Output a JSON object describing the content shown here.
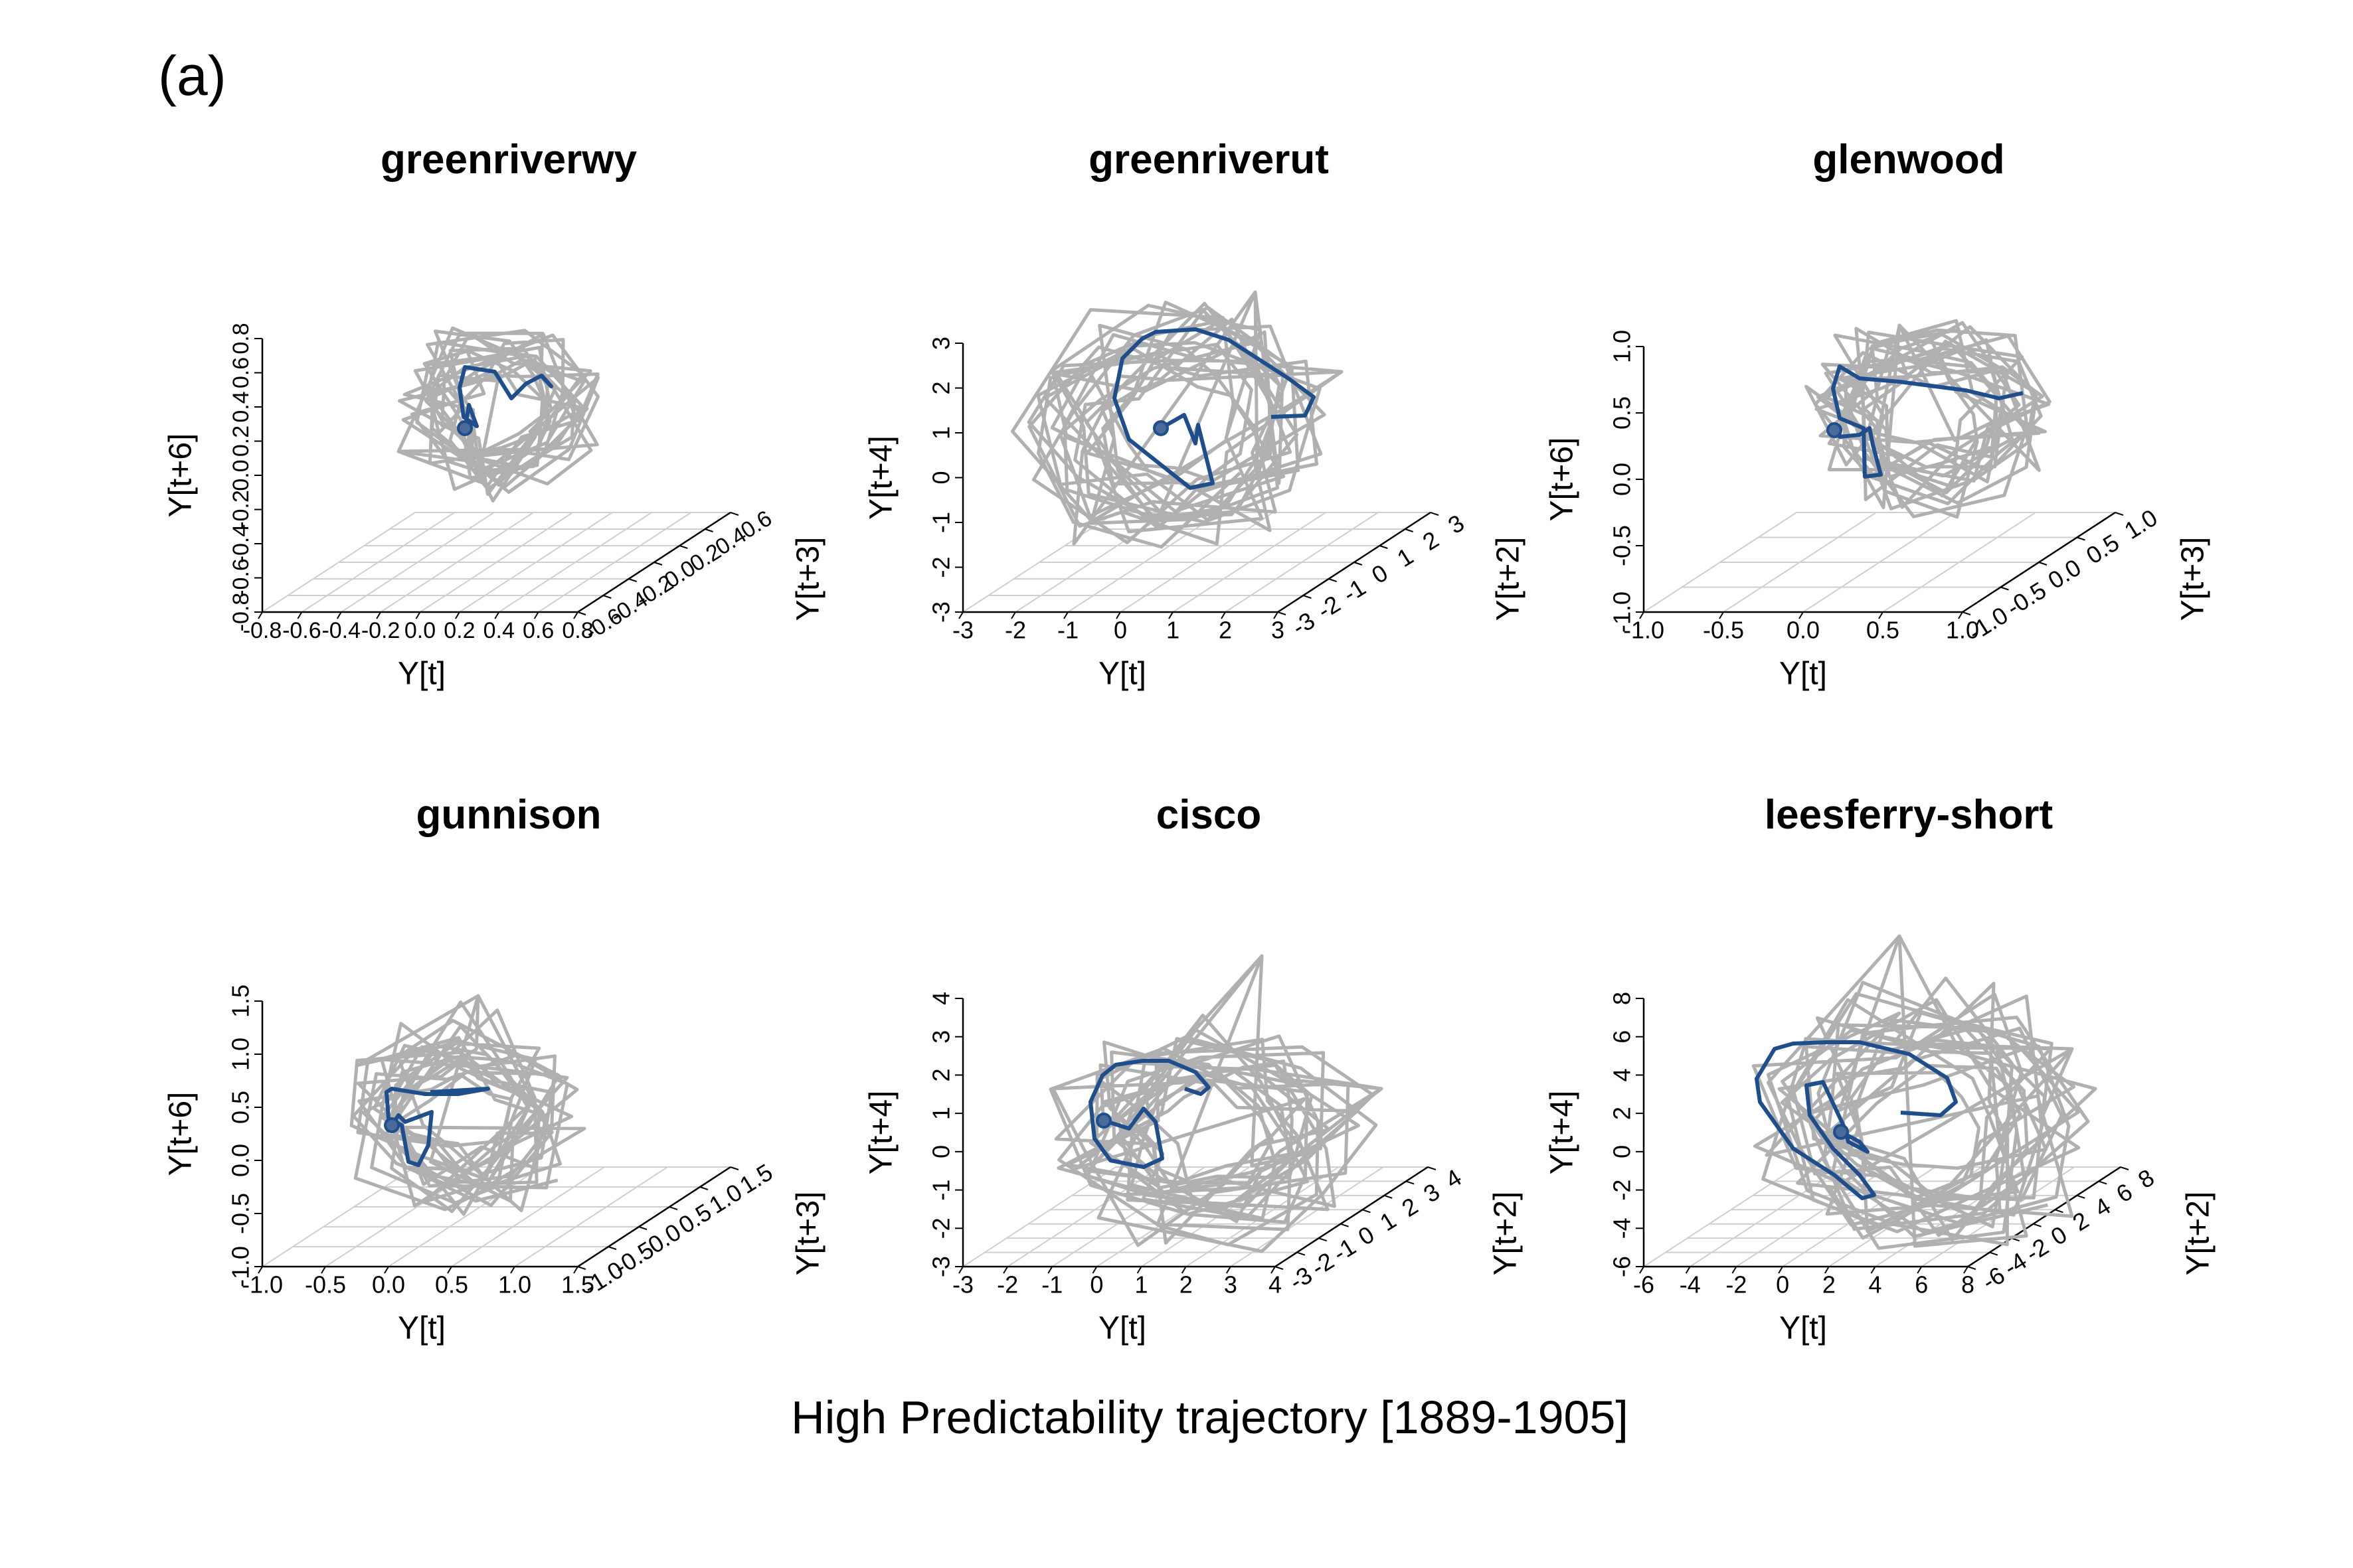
{
  "figure": {
    "panel_label": "(a)",
    "caption": "High Predictability trajectory [1889-1905]"
  },
  "chart_data": [
    {
      "type": "line",
      "title": "greenriverwy",
      "xlabel": "Y[t]",
      "ylabel": "Y[t+3]",
      "zlabel": "Y[t+6]",
      "x_ticks": [
        "-0.8",
        "-0.6",
        "-0.4",
        "-0.2",
        "0.0",
        "0.2",
        "0.4",
        "0.6",
        "0.8"
      ],
      "y_ticks": [
        "-0.6",
        "-0.4",
        "-0.2",
        "0.0",
        "0.2",
        "0.4",
        "0.6"
      ],
      "z_ticks": [
        "-0.8",
        "-0.6",
        "-0.4",
        "-0.2",
        "0.0",
        "0.2",
        "0.4",
        "0.6",
        "0.8"
      ],
      "xlim": [
        -0.8,
        0.8
      ],
      "ylim": [
        -0.6,
        0.6
      ],
      "zlim": [
        -0.8,
        0.8
      ],
      "background_color": "#b0b0b0",
      "highlight_color": "#1f4e8c"
    },
    {
      "type": "line",
      "title": "greenriverut",
      "xlabel": "Y[t]",
      "ylabel": "Y[t+2]",
      "zlabel": "Y[t+4]",
      "x_ticks": [
        "-3",
        "-2",
        "-1",
        "0",
        "1",
        "2",
        "3"
      ],
      "y_ticks": [
        "-3",
        "-2",
        "-1",
        "0",
        "1",
        "2",
        "3"
      ],
      "z_ticks": [
        "-3",
        "-2",
        "-1",
        "0",
        "1",
        "2",
        "3"
      ],
      "xlim": [
        -3,
        3
      ],
      "ylim": [
        -3,
        3
      ],
      "zlim": [
        -3,
        3
      ],
      "background_color": "#b0b0b0",
      "highlight_color": "#1f4e8c"
    },
    {
      "type": "line",
      "title": "glenwood",
      "xlabel": "Y[t]",
      "ylabel": "Y[t+3]",
      "zlabel": "Y[t+6]",
      "x_ticks": [
        "-1.0",
        "-0.5",
        "0.0",
        "0.5",
        "1.0"
      ],
      "y_ticks": [
        "-1.0",
        "-0.5",
        "0.0",
        "0.5",
        "1.0"
      ],
      "z_ticks": [
        "-1.0",
        "-0.5",
        "0.0",
        "0.5",
        "1.0"
      ],
      "xlim": [
        -1,
        1
      ],
      "ylim": [
        -1,
        1
      ],
      "zlim": [
        -1,
        1
      ],
      "background_color": "#b0b0b0",
      "highlight_color": "#1f4e8c"
    },
    {
      "type": "line",
      "title": "gunnison",
      "xlabel": "Y[t]",
      "ylabel": "Y[t+3]",
      "zlabel": "Y[t+6]",
      "x_ticks": [
        "-1.0",
        "-0.5",
        "0.0",
        "0.5",
        "1.0",
        "1.5"
      ],
      "y_ticks": [
        "-1.0",
        "-0.5",
        "0.0",
        "0.5",
        "1.0",
        "1.5"
      ],
      "z_ticks": [
        "-1.0",
        "-0.5",
        "0.0",
        "0.5",
        "1.0",
        "1.5"
      ],
      "xlim": [
        -1,
        1.5
      ],
      "ylim": [
        -1,
        1.5
      ],
      "zlim": [
        -1,
        1.5
      ],
      "background_color": "#b0b0b0",
      "highlight_color": "#1f4e8c"
    },
    {
      "type": "line",
      "title": "cisco",
      "xlabel": "Y[t]",
      "ylabel": "Y[t+2]",
      "zlabel": "Y[t+4]",
      "x_ticks": [
        "-3",
        "-2",
        "-1",
        "0",
        "1",
        "2",
        "3",
        "4"
      ],
      "y_ticks": [
        "-3",
        "-2",
        "-1",
        "0",
        "1",
        "2",
        "3",
        "4"
      ],
      "z_ticks": [
        "-3",
        "-2",
        "-1",
        "0",
        "1",
        "2",
        "3",
        "4"
      ],
      "xlim": [
        -3,
        4
      ],
      "ylim": [
        -3,
        4
      ],
      "zlim": [
        -3,
        4
      ],
      "background_color": "#b0b0b0",
      "highlight_color": "#1f4e8c"
    },
    {
      "type": "line",
      "title": "leesferry-short",
      "xlabel": "Y[t]",
      "ylabel": "Y[t+2]",
      "zlabel": "Y[t+4]",
      "x_ticks": [
        "-6",
        "-4",
        "-2",
        "0",
        "2",
        "4",
        "6",
        "8"
      ],
      "y_ticks": [
        "-6",
        "-4",
        "-2",
        "0",
        "2",
        "4",
        "6",
        "8"
      ],
      "z_ticks": [
        "-6",
        "-4",
        "-2",
        "0",
        "2",
        "4",
        "6",
        "8"
      ],
      "xlim": [
        -6,
        8
      ],
      "ylim": [
        -6,
        8
      ],
      "zlim": [
        -6,
        8
      ],
      "background_color": "#b0b0b0",
      "highlight_color": "#1f4e8c"
    }
  ]
}
